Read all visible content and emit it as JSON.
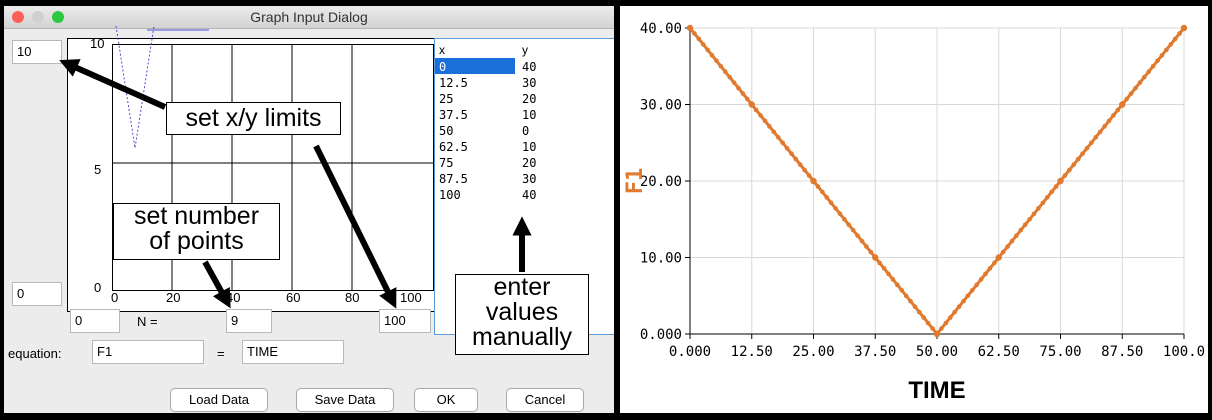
{
  "dialog": {
    "title": "Graph Input Dialog",
    "colors": {
      "close": "#fc5f57",
      "minimize": "#d0d0d0",
      "zoom": "#2bc840"
    },
    "y_max_value": "10",
    "y_min_value": "0",
    "x_min_value": "0",
    "x_max_value": "100",
    "n_label": "N =",
    "n_value": "9",
    "equation_label": "equation:",
    "equation_lhs": "F1",
    "equals_label": "=",
    "equation_rhs": "TIME",
    "plot": {
      "y_ticks": [
        "10",
        "5",
        "0"
      ],
      "x_ticks": [
        "0",
        "20",
        "40",
        "60",
        "80",
        "100"
      ]
    },
    "table": {
      "headers": [
        "x",
        "y"
      ],
      "rows": [
        [
          "0",
          "40"
        ],
        [
          "12.5",
          "30"
        ],
        [
          "25",
          "20"
        ],
        [
          "37.5",
          "10"
        ],
        [
          "50",
          "0"
        ],
        [
          "62.5",
          "10"
        ],
        [
          "75",
          "20"
        ],
        [
          "87.5",
          "30"
        ],
        [
          "100",
          "40"
        ]
      ]
    },
    "buttons": {
      "load": "Load Data",
      "save": "Save Data",
      "ok": "OK",
      "cancel": "Cancel"
    }
  },
  "annotations": {
    "limits": "set x/y limits",
    "points_line1": "set number",
    "points_line2": "of points",
    "manual_line1": "enter",
    "manual_line2": "values",
    "manual_line3": "manually"
  },
  "chart_data": {
    "type": "line",
    "x": [
      0,
      12.5,
      25,
      37.5,
      50,
      62.5,
      75,
      87.5,
      100
    ],
    "series": [
      {
        "values": [
          40,
          30,
          20,
          10,
          0,
          10,
          20,
          30,
          40
        ]
      }
    ],
    "xlabel": "TIME",
    "ylabel": "F1",
    "x_ticks": [
      "0.000",
      "12.50",
      "25.00",
      "37.50",
      "50.00",
      "62.50",
      "75.00",
      "87.50",
      "100.0"
    ],
    "y_ticks": [
      "0.000",
      "10.00",
      "20.00",
      "30.00",
      "40.00"
    ],
    "xlim": [
      0,
      100
    ],
    "ylim": [
      0,
      40
    ],
    "grid": true,
    "color": "#e07a2f"
  }
}
